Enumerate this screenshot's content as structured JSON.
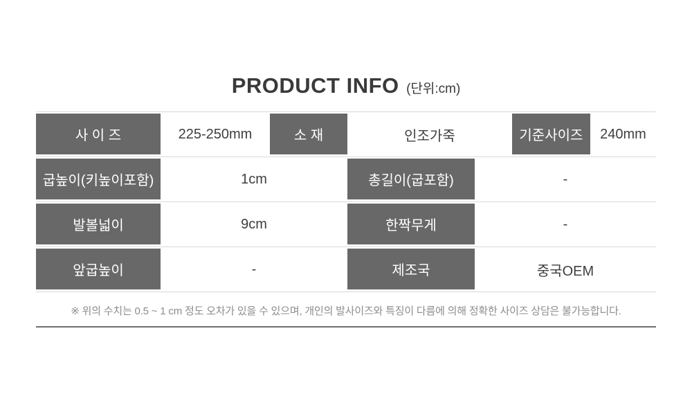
{
  "title": {
    "main": "PRODUCT INFO",
    "unit": "(단위:cm)"
  },
  "table": {
    "rows": [
      {
        "cells": [
          {
            "text": "사 이 즈"
          },
          {
            "text": "225-250mm"
          },
          {
            "text": "소 재"
          },
          {
            "text": "인조가죽"
          },
          {
            "text": "기준사이즈"
          },
          {
            "text": "240mm"
          }
        ]
      },
      {
        "cells": [
          {
            "text": "굽높이(키높이포함)"
          },
          {
            "text": "1cm"
          },
          {
            "text": "총길이(굽포함)"
          },
          {
            "text": "-"
          }
        ]
      },
      {
        "cells": [
          {
            "text": "발볼넓이"
          },
          {
            "text": "9cm"
          },
          {
            "text": "한짝무게"
          },
          {
            "text": "-"
          }
        ]
      },
      {
        "cells": [
          {
            "text": "앞굽높이"
          },
          {
            "text": "-"
          },
          {
            "text": "제조국"
          },
          {
            "text": "중국OEM"
          }
        ]
      }
    ]
  },
  "note": "※ 위의 수치는 0.5 ~ 1 cm 정도 오차가 있을 수 있으며, 개인의 발사이즈와 특징이 다름에 의해 정확한 사이즈 상담은 불가능합니다.",
  "colors": {
    "header_bg": "#686868",
    "header_text": "#ffffff",
    "value_text": "#3e3e3e",
    "row_line": "#d9d9d9",
    "note_text": "#8c8c8c",
    "divider": "#6f6f6f",
    "title_text": "#3a3a3a"
  }
}
